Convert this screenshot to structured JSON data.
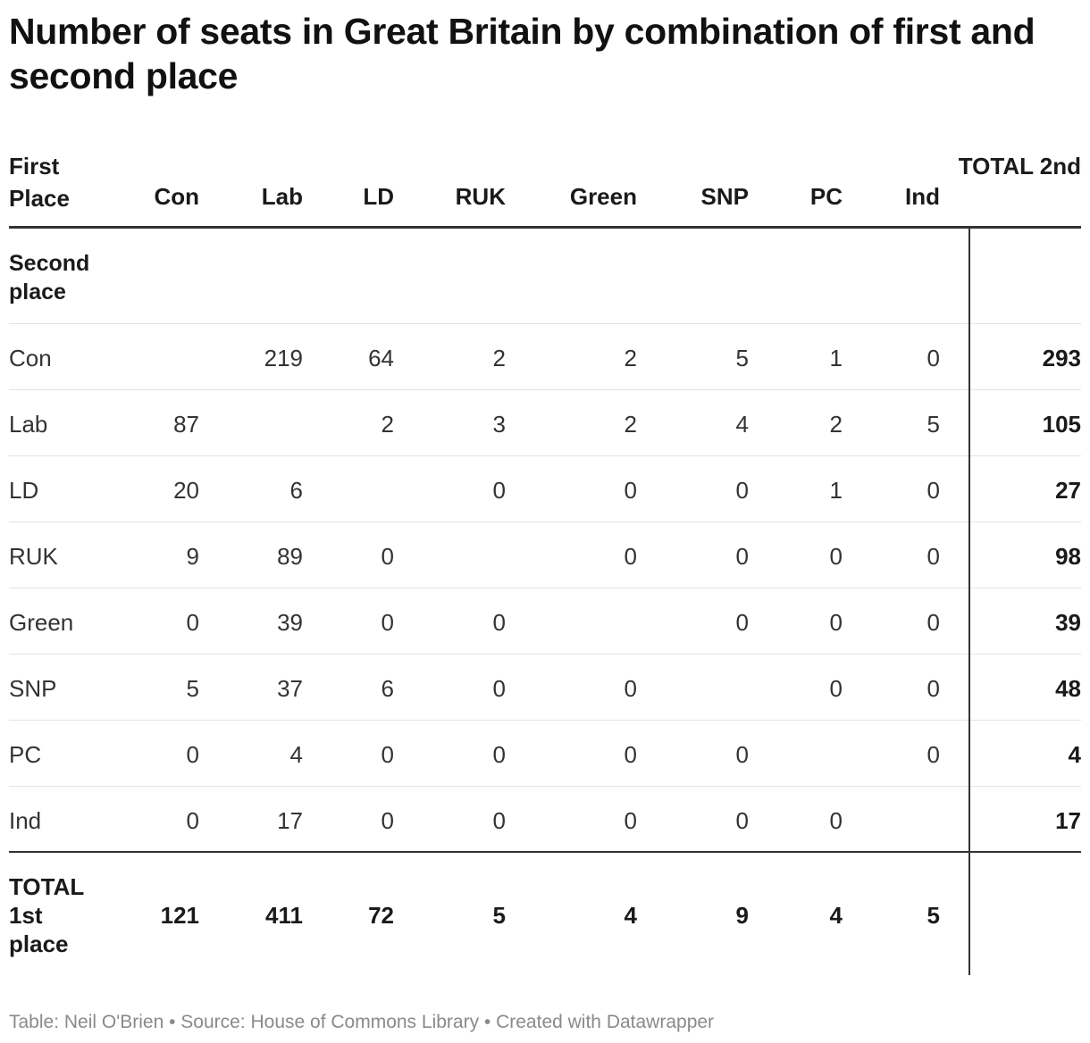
{
  "title": "Number of seats in Great Britain by combination of first and second place",
  "chart_data": {
    "type": "table",
    "title": "Number of seats in Great Britain by combination of first and second place",
    "corner_header": "First Place",
    "columns": [
      "Con",
      "Lab",
      "LD",
      "RUK",
      "Green",
      "SNP",
      "PC",
      "Ind"
    ],
    "total_column_header": "TOTAL 2nd",
    "second_place_label": "Second place",
    "rows": [
      {
        "label": "Con",
        "values": [
          "",
          "219",
          "64",
          "2",
          "2",
          "5",
          "1",
          "0"
        ],
        "total": "293"
      },
      {
        "label": "Lab",
        "values": [
          "87",
          "",
          "2",
          "3",
          "2",
          "4",
          "2",
          "5"
        ],
        "total": "105"
      },
      {
        "label": "LD",
        "values": [
          "20",
          "6",
          "",
          "0",
          "0",
          "0",
          "1",
          "0"
        ],
        "total": "27"
      },
      {
        "label": "RUK",
        "values": [
          "9",
          "89",
          "0",
          "",
          "0",
          "0",
          "0",
          "0"
        ],
        "total": "98"
      },
      {
        "label": "Green",
        "values": [
          "0",
          "39",
          "0",
          "0",
          "",
          "0",
          "0",
          "0"
        ],
        "total": "39"
      },
      {
        "label": "SNP",
        "values": [
          "5",
          "37",
          "6",
          "0",
          "0",
          "",
          "0",
          "0"
        ],
        "total": "48"
      },
      {
        "label": "PC",
        "values": [
          "0",
          "4",
          "0",
          "0",
          "0",
          "0",
          "",
          "0"
        ],
        "total": "4"
      },
      {
        "label": "Ind",
        "values": [
          "0",
          "17",
          "0",
          "0",
          "0",
          "0",
          "0",
          ""
        ],
        "total": "17"
      }
    ],
    "total_row_label": "TOTAL 1st place",
    "total_row_values": [
      "121",
      "411",
      "72",
      "5",
      "4",
      "9",
      "4",
      "5"
    ]
  },
  "footer": "Table: Neil O'Brien • Source: House of Commons Library • Created with Datawrapper"
}
